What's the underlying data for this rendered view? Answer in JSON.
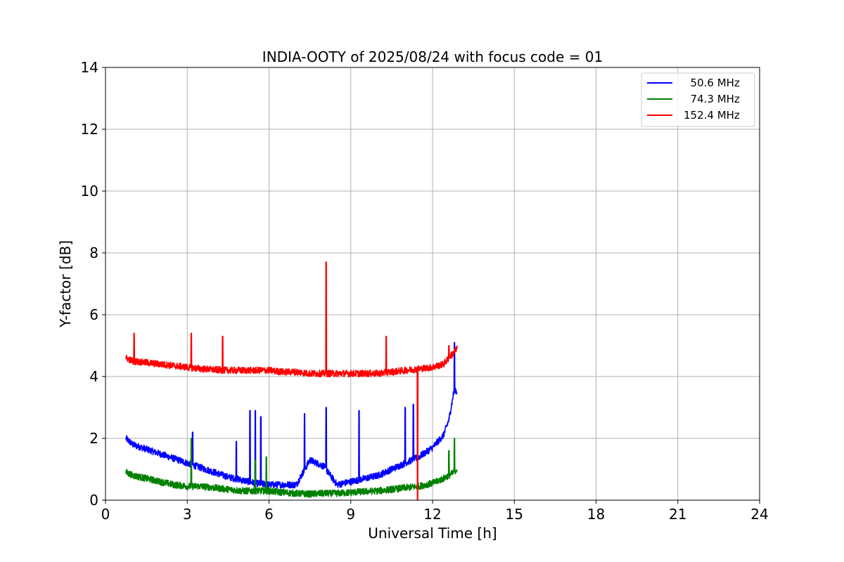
{
  "chart_data": {
    "type": "line",
    "title": "INDIA-OOTY of 2025/08/24 with focus code = 01",
    "xlabel": "Universal Time [h]",
    "ylabel": "Y-factor [dB]",
    "xlim": [
      0,
      24
    ],
    "ylim": [
      0,
      14
    ],
    "x_ticks": [
      "0",
      "3",
      "6",
      "9",
      "12",
      "15",
      "18",
      "21",
      "24"
    ],
    "y_ticks": [
      "0",
      "2",
      "4",
      "6",
      "8",
      "10",
      "12",
      "14"
    ],
    "grid": true,
    "legend_position": "top-right",
    "series": [
      {
        "name": "50.6 MHz",
        "legend_label": "  50.6 MHz",
        "color": "#0000ff",
        "x": [
          0.75,
          1.0,
          1.5,
          2.0,
          2.5,
          3.0,
          3.5,
          4.0,
          4.5,
          5.0,
          5.5,
          6.0,
          6.5,
          7.0,
          7.5,
          8.0,
          8.5,
          9.0,
          9.5,
          10.0,
          10.5,
          11.0,
          11.5,
          12.0,
          12.4,
          12.6,
          12.8,
          12.9
        ],
        "values": [
          2.0,
          1.8,
          1.65,
          1.5,
          1.35,
          1.2,
          1.05,
          0.9,
          0.75,
          0.65,
          0.55,
          0.5,
          0.5,
          0.5,
          1.3,
          1.1,
          0.5,
          0.6,
          0.7,
          0.8,
          1.0,
          1.2,
          1.4,
          1.7,
          2.1,
          2.6,
          3.6,
          3.5
        ],
        "spikes": [
          [
            3.2,
            2.2
          ],
          [
            4.8,
            1.9
          ],
          [
            5.3,
            2.9
          ],
          [
            5.5,
            2.9
          ],
          [
            5.7,
            2.7
          ],
          [
            7.3,
            2.8
          ],
          [
            8.1,
            3.0
          ],
          [
            9.3,
            2.9
          ],
          [
            11.0,
            3.0
          ],
          [
            11.3,
            3.1
          ],
          [
            12.8,
            5.1
          ]
        ]
      },
      {
        "name": "74.3 MHz",
        "legend_label": "  74.3 MHz",
        "color": "#008000",
        "x": [
          0.75,
          1.0,
          1.5,
          2.0,
          2.5,
          3.0,
          3.5,
          4.0,
          4.5,
          5.0,
          5.5,
          6.0,
          6.5,
          7.0,
          7.5,
          8.0,
          8.5,
          9.0,
          9.5,
          10.0,
          10.5,
          11.0,
          11.5,
          12.0,
          12.4,
          12.7,
          12.9
        ],
        "values": [
          0.9,
          0.8,
          0.7,
          0.6,
          0.5,
          0.45,
          0.45,
          0.4,
          0.35,
          0.3,
          0.3,
          0.3,
          0.25,
          0.22,
          0.2,
          0.22,
          0.22,
          0.25,
          0.28,
          0.3,
          0.35,
          0.4,
          0.45,
          0.55,
          0.7,
          0.85,
          1.0
        ],
        "spikes": [
          [
            3.15,
            2.0
          ],
          [
            5.5,
            1.3
          ],
          [
            5.9,
            1.4
          ],
          [
            12.6,
            1.6
          ],
          [
            12.8,
            2.0
          ]
        ]
      },
      {
        "name": "152.4 MHz",
        "legend_label": "152.4 MHz",
        "color": "#ff0000",
        "x": [
          0.75,
          1.0,
          1.5,
          2.0,
          2.5,
          3.0,
          3.5,
          4.0,
          4.5,
          5.0,
          5.5,
          6.0,
          6.5,
          7.0,
          7.5,
          8.0,
          8.5,
          9.0,
          9.5,
          10.0,
          10.5,
          11.0,
          11.5,
          12.0,
          12.4,
          12.7,
          12.9
        ],
        "values": [
          4.6,
          4.5,
          4.45,
          4.4,
          4.35,
          4.3,
          4.25,
          4.22,
          4.2,
          4.2,
          4.2,
          4.2,
          4.15,
          4.15,
          4.1,
          4.1,
          4.1,
          4.1,
          4.1,
          4.1,
          4.15,
          4.2,
          4.25,
          4.3,
          4.4,
          4.7,
          4.9
        ],
        "spikes": [
          [
            1.05,
            5.4
          ],
          [
            3.15,
            5.4
          ],
          [
            4.3,
            5.3
          ],
          [
            8.1,
            7.7
          ],
          [
            10.3,
            5.3
          ],
          [
            11.45,
            0.0
          ],
          [
            12.6,
            5.0
          ]
        ]
      }
    ]
  }
}
